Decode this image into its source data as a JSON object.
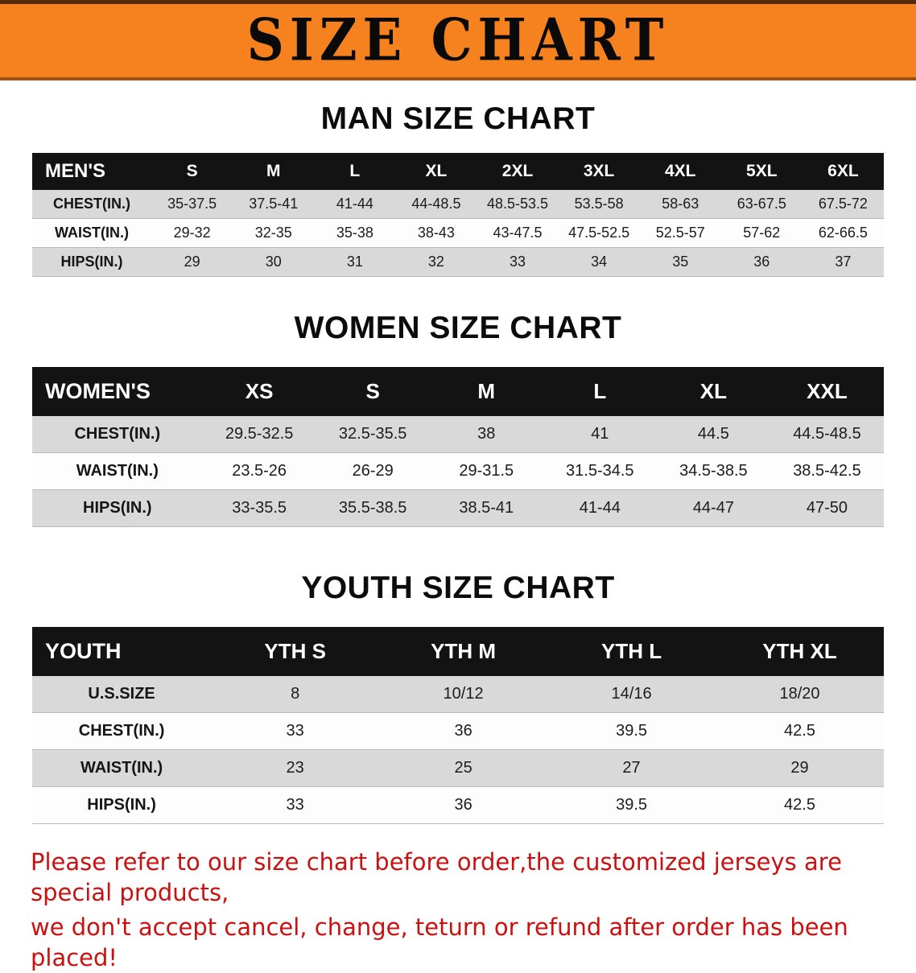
{
  "banner": {
    "title": "SIZE CHART"
  },
  "colors": {
    "banner_bg": "#f5821f",
    "table_header_bg": "#131313",
    "row_stripe": "#d9d9d9",
    "footnote_red": "#cc1010"
  },
  "chart_data": [
    {
      "type": "table",
      "title": "MAN SIZE CHART",
      "corner_label": "MEN'S",
      "columns": [
        "S",
        "M",
        "L",
        "XL",
        "2XL",
        "3XL",
        "4XL",
        "5XL",
        "6XL"
      ],
      "rows": [
        {
          "label": "CHEST(IN.)",
          "values": [
            "35-37.5",
            "37.5-41",
            "41-44",
            "44-48.5",
            "48.5-53.5",
            "53.5-58",
            "58-63",
            "63-67.5",
            "67.5-72"
          ]
        },
        {
          "label": "WAIST(IN.)",
          "values": [
            "29-32",
            "32-35",
            "35-38",
            "38-43",
            "43-47.5",
            "47.5-52.5",
            "52.5-57",
            "57-62",
            "62-66.5"
          ]
        },
        {
          "label": "HIPS(IN.)",
          "values": [
            "29",
            "30",
            "31",
            "32",
            "33",
            "34",
            "35",
            "36",
            "37"
          ]
        }
      ]
    },
    {
      "type": "table",
      "title": "WOMEN SIZE CHART",
      "corner_label": "WOMEN'S",
      "columns": [
        "XS",
        "S",
        "M",
        "L",
        "XL",
        "XXL"
      ],
      "rows": [
        {
          "label": "CHEST(IN.)",
          "values": [
            "29.5-32.5",
            "32.5-35.5",
            "38",
            "41",
            "44.5",
            "44.5-48.5"
          ]
        },
        {
          "label": "WAIST(IN.)",
          "values": [
            "23.5-26",
            "26-29",
            "29-31.5",
            "31.5-34.5",
            "34.5-38.5",
            "38.5-42.5"
          ]
        },
        {
          "label": "HIPS(IN.)",
          "values": [
            "33-35.5",
            "35.5-38.5",
            "38.5-41",
            "41-44",
            "44-47",
            "47-50"
          ]
        }
      ]
    },
    {
      "type": "table",
      "title": "YOUTH SIZE CHART",
      "corner_label": "YOUTH",
      "columns": [
        "YTH S",
        "YTH M",
        "YTH L",
        "YTH XL"
      ],
      "rows": [
        {
          "label": "U.S.SIZE",
          "values": [
            "8",
            "10/12",
            "14/16",
            "18/20"
          ]
        },
        {
          "label": "CHEST(IN.)",
          "values": [
            "33",
            "36",
            "39.5",
            "42.5"
          ]
        },
        {
          "label": "WAIST(IN.)",
          "values": [
            "23",
            "25",
            "27",
            "29"
          ]
        },
        {
          "label": "HIPS(IN.)",
          "values": [
            "33",
            "36",
            "39.5",
            "42.5"
          ]
        }
      ]
    }
  ],
  "footnote": {
    "line1": "Please refer to our size chart before order,the customized jerseys are special products,",
    "line2": "we don't accept cancel, change, teturn or refund after order has been placed!"
  }
}
